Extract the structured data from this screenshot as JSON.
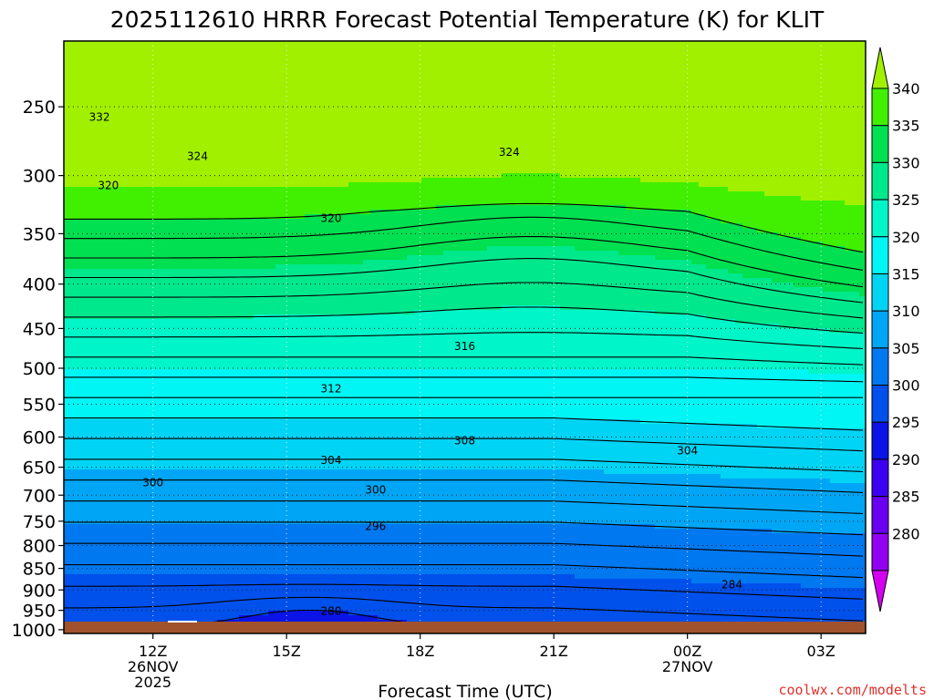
{
  "chart_data": {
    "type": "heatmap",
    "title": "2025112610 HRRR Forecast Potential Temperature (K) for KLIT",
    "xlabel": "Forecast Time (UTC)",
    "ylabel": "",
    "x_tick_labels": [
      {
        "time": "12Z",
        "date": "26NOV",
        "year": "2025"
      },
      {
        "time": "15Z",
        "date": "",
        "year": ""
      },
      {
        "time": "18Z",
        "date": "",
        "year": ""
      },
      {
        "time": "21Z",
        "date": "",
        "year": ""
      },
      {
        "time": "00Z",
        "date": "27NOV",
        "year": ""
      },
      {
        "time": "03Z",
        "date": "",
        "year": ""
      }
    ],
    "x_hours": [
      12,
      15,
      18,
      21,
      24,
      27
    ],
    "xlim": [
      10,
      28
    ],
    "y_pressure_levels": [
      250,
      300,
      350,
      400,
      450,
      500,
      550,
      600,
      650,
      700,
      750,
      800,
      850,
      900,
      950,
      1000
    ],
    "ylim": [
      1010,
      210
    ],
    "y_scale": "log pressure (hPa)",
    "grid": "dotted",
    "colorbar": {
      "levels": [
        280,
        285,
        290,
        295,
        300,
        305,
        310,
        315,
        320,
        325,
        330,
        335,
        340
      ],
      "colors": [
        "#d400f0",
        "#9100f0",
        "#6a00f0",
        "#3b00f0",
        "#0a14e6",
        "#0050eb",
        "#0078f0",
        "#00a6f5",
        "#00d4f5",
        "#00f5f5",
        "#00f5c8",
        "#00e88c",
        "#00e050",
        "#40f000",
        "#a0f000"
      ]
    },
    "contour_levels": [
      280,
      282,
      284,
      286,
      288,
      290,
      292,
      294,
      296,
      298,
      300,
      302,
      304,
      306,
      308,
      310,
      312,
      314,
      316,
      318,
      320,
      322,
      324,
      326,
      328,
      330,
      332,
      334,
      336,
      338,
      340
    ],
    "contour_labels": [
      {
        "value": "332",
        "hour": 10.8,
        "p": 257
      },
      {
        "value": "324",
        "hour": 13.0,
        "p": 285
      },
      {
        "value": "324",
        "hour": 20.0,
        "p": 282
      },
      {
        "value": "320",
        "hour": 11.0,
        "p": 308
      },
      {
        "value": "320",
        "hour": 16.0,
        "p": 336
      },
      {
        "value": "316",
        "hour": 19.0,
        "p": 472
      },
      {
        "value": "312",
        "hour": 16.0,
        "p": 528
      },
      {
        "value": "308",
        "hour": 19.0,
        "p": 606
      },
      {
        "value": "304",
        "hour": 16.0,
        "p": 638
      },
      {
        "value": "304",
        "hour": 24.0,
        "p": 622
      },
      {
        "value": "300",
        "hour": 12.0,
        "p": 677
      },
      {
        "value": "300",
        "hour": 17.0,
        "p": 690
      },
      {
        "value": "296",
        "hour": 17.0,
        "p": 760
      },
      {
        "value": "284",
        "hour": 25.0,
        "p": 888
      },
      {
        "value": "280",
        "hour": 16.0,
        "p": 952
      }
    ],
    "surface_color": "#a0522d"
  },
  "credit": "coolwx.com/modelts"
}
